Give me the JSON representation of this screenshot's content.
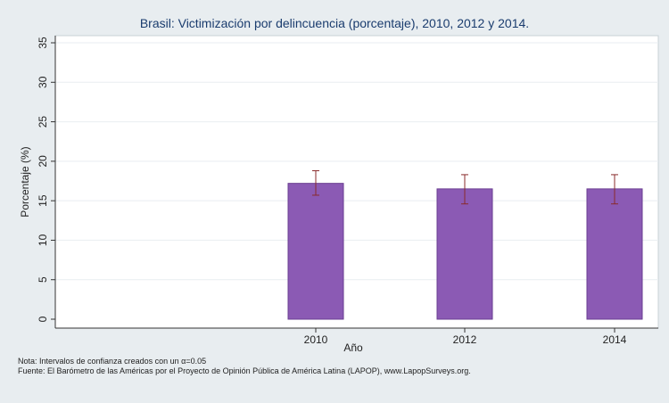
{
  "chart_data": {
    "type": "bar",
    "title": "Brasil: Victimización por delincuencia (porcentaje), 2010, 2012 y 2014.",
    "xlabel": "Año",
    "ylabel": "Porcentaje (%)",
    "categories": [
      "2010",
      "2012",
      "2014"
    ],
    "values": [
      17.2,
      16.5,
      16.5
    ],
    "ci_lower": [
      15.7,
      14.6,
      14.6
    ],
    "ci_upper": [
      18.8,
      18.3,
      18.3
    ],
    "ylim": [
      0,
      35
    ],
    "yticks": [
      0,
      5,
      10,
      15,
      20,
      25,
      30,
      35
    ],
    "grid": true,
    "colors": {
      "bar_fill": "#8b5ab4",
      "bar_stroke": "#6a3e92",
      "errorbar": "#8a2b2b",
      "plot_bg": "#ffffff",
      "page_bg": "#e8edf0",
      "title": "#1a3c6e"
    }
  },
  "notes": {
    "note_line": "Nota: Intervalos de confianza creados con un α=0.05",
    "source_line": "Fuente: El Barómetro de las Américas por el Proyecto de Opinión Pública de América Latina (LAPOP), www.LapopSurveys.org."
  }
}
